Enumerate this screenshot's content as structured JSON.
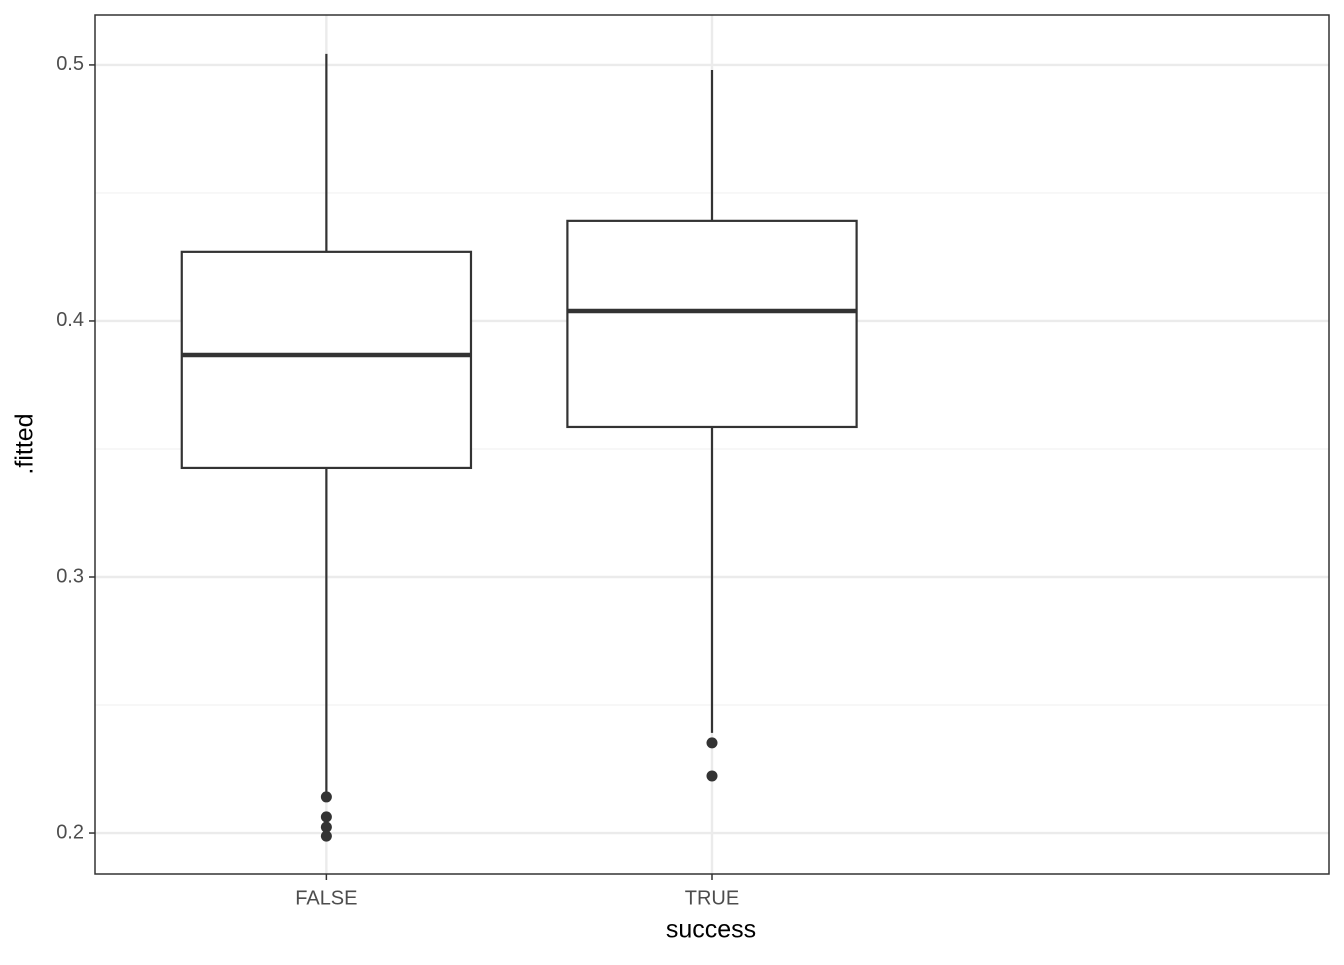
{
  "chart_data": {
    "type": "box",
    "x_label": "success",
    "y_label": ".fitted",
    "categories": [
      "FALSE",
      "TRUE"
    ],
    "boxes": [
      {
        "min": 0.2155,
        "q1": 0.3426,
        "median": 0.3867,
        "q3": 0.427,
        "max": 0.5043,
        "outliers": [
          0.2141,
          0.2063,
          0.2023,
          0.1988
        ]
      },
      {
        "min": 0.2391,
        "q1": 0.3586,
        "median": 0.4039,
        "q3": 0.4391,
        "max": 0.498,
        "outliers": [
          0.2352,
          0.2223
        ]
      }
    ],
    "color": "#333333",
    "ylim": [
      0.184,
      0.5195
    ],
    "yticks": [
      0.2,
      0.3,
      0.4,
      0.5
    ],
    "minor_yticks": [
      0.25,
      0.35,
      0.45
    ],
    "grid": true
  }
}
